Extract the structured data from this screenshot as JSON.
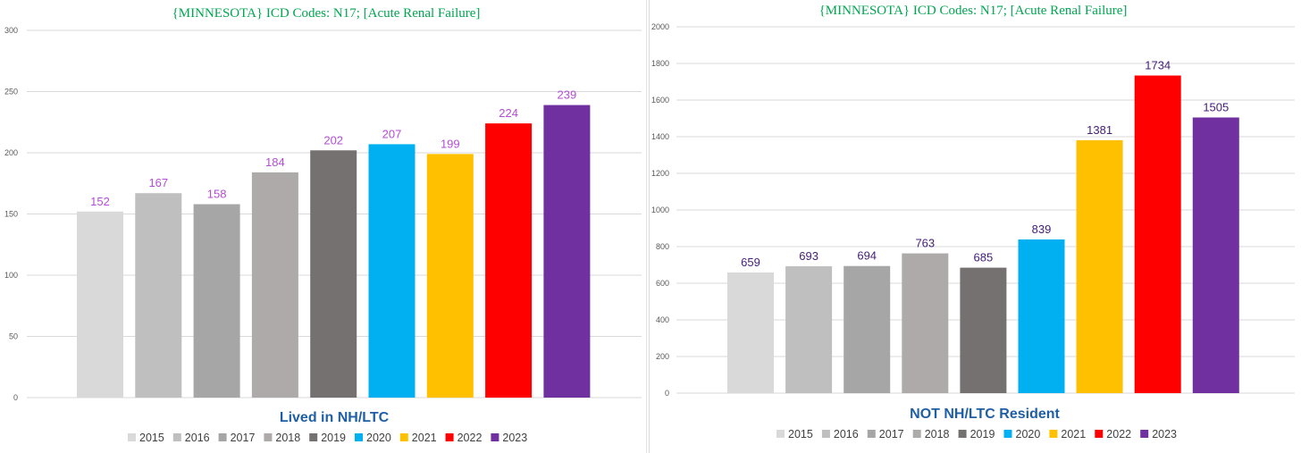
{
  "chart_data": [
    {
      "type": "bar",
      "title": "{MINNESOTA}  ICD Codes: N17;  [Acute Renal Failure]",
      "subtitle": "Lived in NH/LTC",
      "xlabel": "",
      "ylabel": "",
      "categories": [
        "2015",
        "2016",
        "2017",
        "2018",
        "2019",
        "2020",
        "2021",
        "2022",
        "2023"
      ],
      "values": [
        152,
        167,
        158,
        184,
        202,
        207,
        199,
        224,
        239
      ],
      "data_labels": [
        "152",
        "167",
        "158",
        "184",
        "202",
        "207",
        "199",
        "224",
        "239"
      ],
      "colors": [
        "#d9d9d9",
        "#bfbfbf",
        "#a6a6a6",
        "#aeaaaa",
        "#767171",
        "#00b0f0",
        "#ffc000",
        "#ff0000",
        "#7030a0"
      ],
      "label_color": "#b44dd6",
      "ylim": [
        0,
        300
      ],
      "yticks": [
        "0",
        "50",
        "100",
        "150",
        "200",
        "250",
        "300"
      ],
      "ytick_values": [
        0,
        50,
        100,
        150,
        200,
        250,
        300
      ],
      "legend": [
        "2015",
        "2016",
        "2017",
        "2018",
        "2019",
        "2020",
        "2021",
        "2022",
        "2023"
      ],
      "legend_position": "bottom",
      "grid": true
    },
    {
      "type": "bar",
      "title": "{MINNESOTA}  ICD Codes: N17;  [Acute Renal Failure]",
      "subtitle": "NOT NH/LTC Resident",
      "xlabel": "",
      "ylabel": "",
      "categories": [
        "2015",
        "2016",
        "2017",
        "2018",
        "2019",
        "2020",
        "2021",
        "2022",
        "2023"
      ],
      "values": [
        659,
        693,
        694,
        763,
        685,
        839,
        1381,
        1734,
        1505
      ],
      "data_labels": [
        "659",
        "693",
        "694",
        "763",
        "685",
        "839",
        "1381",
        "1734",
        "1505"
      ],
      "colors": [
        "#d9d9d9",
        "#bfbfbf",
        "#a6a6a6",
        "#aeaaaa",
        "#767171",
        "#00b0f0",
        "#ffc000",
        "#ff0000",
        "#7030a0"
      ],
      "label_color": "#44207a",
      "ylim": [
        0,
        2000
      ],
      "yticks": [
        "0",
        "200",
        "400",
        "600",
        "800",
        "1000",
        "1200",
        "1400",
        "1600",
        "1800",
        "2000"
      ],
      "ytick_values": [
        0,
        200,
        400,
        600,
        800,
        1000,
        1200,
        1400,
        1600,
        1800,
        2000
      ],
      "legend": [
        "2015",
        "2016",
        "2017",
        "2018",
        "2019",
        "2020",
        "2021",
        "2022",
        "2023"
      ],
      "legend_position": "bottom",
      "grid": true
    }
  ]
}
